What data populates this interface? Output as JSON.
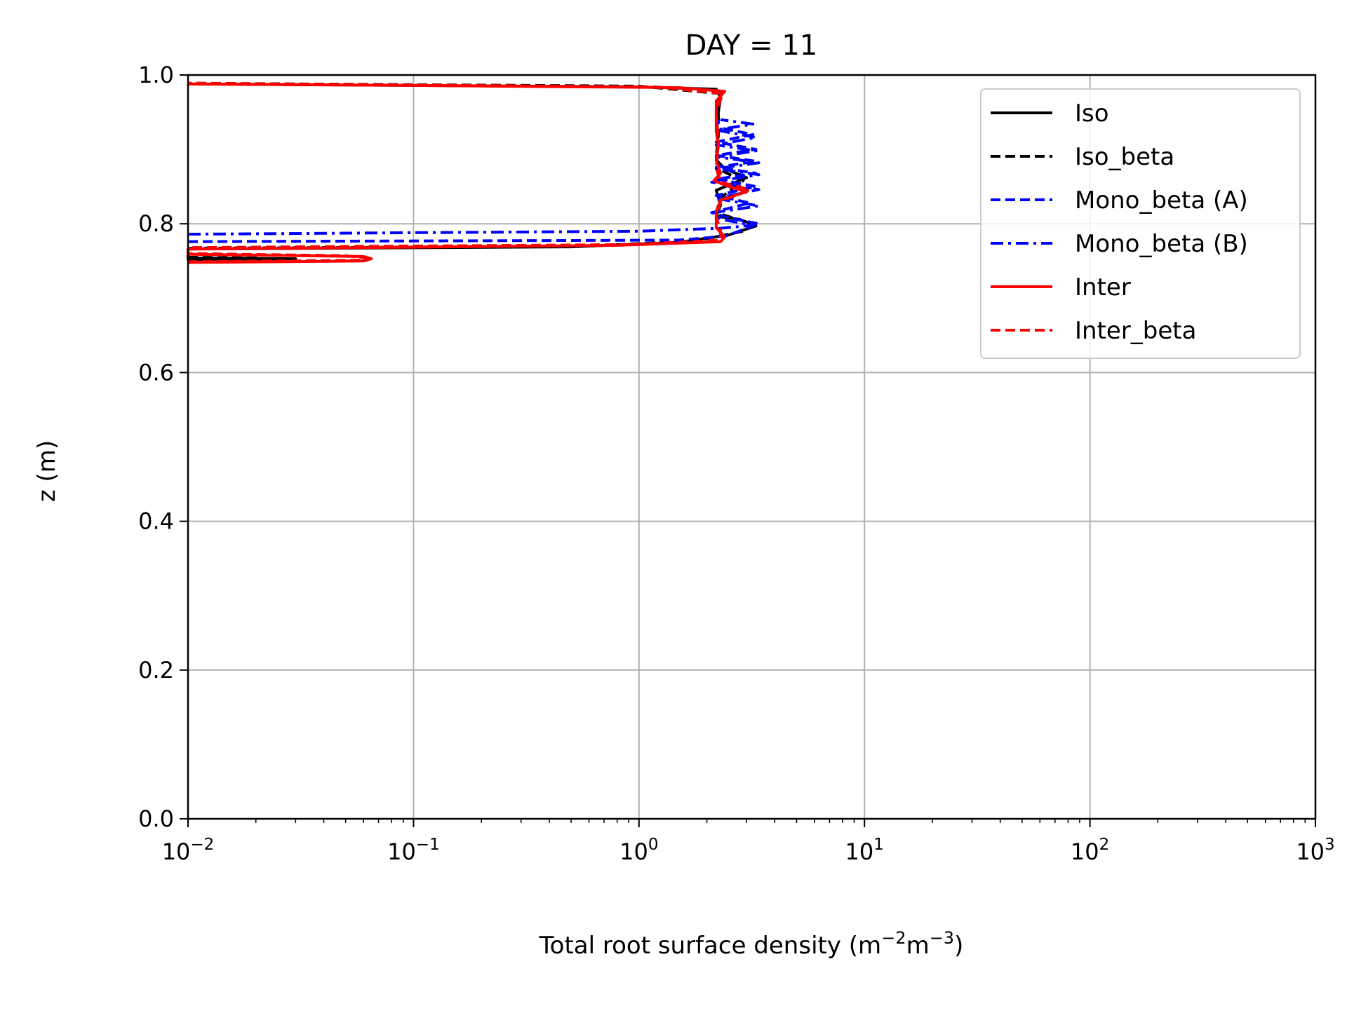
{
  "chart_data": {
    "type": "line",
    "title": "DAY = 11",
    "xlabel": {
      "main": "Total root surface density (m",
      "sup1": "−2",
      "mid": "m",
      "sup2": "−3",
      "end": ")"
    },
    "ylabel": "z (m)",
    "xscale": "log",
    "xlim": [
      0.01,
      1000
    ],
    "ylim": [
      0.0,
      1.0
    ],
    "grid": true,
    "legend_position": "upper-right",
    "x_ticks": [
      {
        "value": 0.01,
        "base": "10",
        "exp": "−2"
      },
      {
        "value": 0.1,
        "base": "10",
        "exp": "−1"
      },
      {
        "value": 1,
        "base": "10",
        "exp": "0"
      },
      {
        "value": 10,
        "base": "10",
        "exp": "1"
      },
      {
        "value": 100,
        "base": "10",
        "exp": "2"
      },
      {
        "value": 1000,
        "base": "10",
        "exp": "3"
      }
    ],
    "y_ticks": [
      {
        "value": 0.0,
        "label": "0.0"
      },
      {
        "value": 0.2,
        "label": "0.2"
      },
      {
        "value": 0.4,
        "label": "0.4"
      },
      {
        "value": 0.6,
        "label": "0.6"
      },
      {
        "value": 0.8,
        "label": "0.8"
      },
      {
        "value": 1.0,
        "label": "1.0"
      }
    ],
    "series": [
      {
        "name": "Iso",
        "color": "#000000",
        "dash": "solid",
        "points": [
          [
            0.01,
            0.754
          ],
          [
            0.03,
            0.753
          ],
          [
            0.01,
            0.752
          ],
          [
            0.01,
            0.766
          ],
          [
            0.5,
            0.769
          ],
          [
            1.5,
            0.775
          ],
          [
            2.5,
            0.785
          ],
          [
            3.3,
            0.797
          ],
          [
            2.8,
            0.806
          ],
          [
            2.2,
            0.81
          ],
          [
            2.3,
            0.825
          ],
          [
            2.2,
            0.845
          ],
          [
            3.0,
            0.862
          ],
          [
            2.4,
            0.874
          ],
          [
            2.2,
            0.886
          ],
          [
            2.25,
            0.905
          ],
          [
            2.2,
            0.925
          ],
          [
            2.25,
            0.95
          ],
          [
            2.3,
            0.97
          ],
          [
            2.2,
            0.981
          ],
          [
            1.0,
            0.984
          ],
          [
            0.1,
            0.986
          ],
          [
            0.01,
            0.988
          ]
        ]
      },
      {
        "name": "Iso_beta",
        "color": "#000000",
        "dash": "dashed",
        "points": [
          [
            0.01,
            0.755
          ],
          [
            0.02,
            0.754
          ],
          [
            0.01,
            0.753
          ],
          [
            0.01,
            0.767
          ],
          [
            0.6,
            0.77
          ],
          [
            1.8,
            0.777
          ],
          [
            2.9,
            0.79
          ],
          [
            3.2,
            0.8
          ],
          [
            2.6,
            0.808
          ],
          [
            2.2,
            0.815
          ],
          [
            2.3,
            0.835
          ],
          [
            2.9,
            0.858
          ],
          [
            2.3,
            0.872
          ],
          [
            2.2,
            0.89
          ],
          [
            2.25,
            0.92
          ],
          [
            2.25,
            0.955
          ],
          [
            2.3,
            0.975
          ],
          [
            1.0,
            0.985
          ],
          [
            0.01,
            0.989
          ]
        ]
      },
      {
        "name": "Mono_beta (A)",
        "color": "#0000ff",
        "dash": "dashed",
        "points": [
          [
            0.01,
            0.776
          ],
          [
            1.5,
            0.778
          ],
          [
            2.4,
            0.783
          ],
          [
            3.4,
            0.8
          ],
          [
            2.5,
            0.808
          ],
          [
            2.1,
            0.815
          ],
          [
            3.1,
            0.828
          ],
          [
            2.2,
            0.838
          ],
          [
            3.3,
            0.85
          ],
          [
            2.2,
            0.86
          ],
          [
            3.3,
            0.868
          ],
          [
            2.2,
            0.876
          ],
          [
            3.3,
            0.884
          ],
          [
            2.2,
            0.892
          ],
          [
            3.3,
            0.9
          ],
          [
            2.2,
            0.91
          ],
          [
            3.2,
            0.92
          ],
          [
            2.2,
            0.93
          ],
          [
            2.3,
            0.945
          ]
        ]
      },
      {
        "name": "Mono_beta (B)",
        "color": "#0000ff",
        "dash": "dashdot",
        "points": [
          [
            0.01,
            0.786
          ],
          [
            1.0,
            0.79
          ],
          [
            2.3,
            0.794
          ],
          [
            3.2,
            0.798
          ],
          [
            2.3,
            0.806
          ],
          [
            2.15,
            0.815
          ],
          [
            3.4,
            0.824
          ],
          [
            2.2,
            0.834
          ],
          [
            3.4,
            0.846
          ],
          [
            2.1,
            0.856
          ],
          [
            3.4,
            0.866
          ],
          [
            2.2,
            0.874
          ],
          [
            3.4,
            0.882
          ],
          [
            2.2,
            0.89
          ],
          [
            3.3,
            0.898
          ],
          [
            2.2,
            0.906
          ],
          [
            3.3,
            0.916
          ],
          [
            2.2,
            0.926
          ],
          [
            3.2,
            0.934
          ],
          [
            2.3,
            0.94
          ]
        ]
      },
      {
        "name": "Inter",
        "color": "#ff0000",
        "dash": "solid",
        "points": [
          [
            0.01,
            0.748
          ],
          [
            0.06,
            0.75
          ],
          [
            0.065,
            0.753
          ],
          [
            0.06,
            0.756
          ],
          [
            0.01,
            0.759
          ],
          [
            0.01,
            0.766
          ],
          [
            0.8,
            0.771
          ],
          [
            2.3,
            0.776
          ],
          [
            2.4,
            0.782
          ],
          [
            2.2,
            0.795
          ],
          [
            2.2,
            0.815
          ],
          [
            2.3,
            0.832
          ],
          [
            3.0,
            0.843
          ],
          [
            2.5,
            0.85
          ],
          [
            2.15,
            0.858
          ],
          [
            2.3,
            0.868
          ],
          [
            2.2,
            0.885
          ],
          [
            2.25,
            0.905
          ],
          [
            2.2,
            0.925
          ],
          [
            2.2,
            0.945
          ],
          [
            2.2,
            0.965
          ],
          [
            2.4,
            0.978
          ],
          [
            1.5,
            0.983
          ],
          [
            0.1,
            0.986
          ],
          [
            0.01,
            0.988
          ]
        ]
      },
      {
        "name": "Inter_beta",
        "color": "#ff0000",
        "dash": "dashed",
        "points": [
          [
            0.01,
            0.749
          ],
          [
            0.06,
            0.751
          ],
          [
            0.062,
            0.754
          ],
          [
            0.05,
            0.757
          ],
          [
            0.01,
            0.76
          ],
          [
            0.01,
            0.768
          ],
          [
            0.9,
            0.772
          ],
          [
            2.3,
            0.778
          ],
          [
            2.3,
            0.79
          ],
          [
            2.2,
            0.81
          ],
          [
            2.3,
            0.83
          ],
          [
            3.1,
            0.846
          ],
          [
            2.3,
            0.856
          ],
          [
            2.2,
            0.875
          ],
          [
            2.25,
            0.91
          ],
          [
            2.2,
            0.95
          ],
          [
            2.35,
            0.975
          ],
          [
            1.2,
            0.984
          ],
          [
            0.01,
            0.989
          ]
        ]
      }
    ]
  }
}
